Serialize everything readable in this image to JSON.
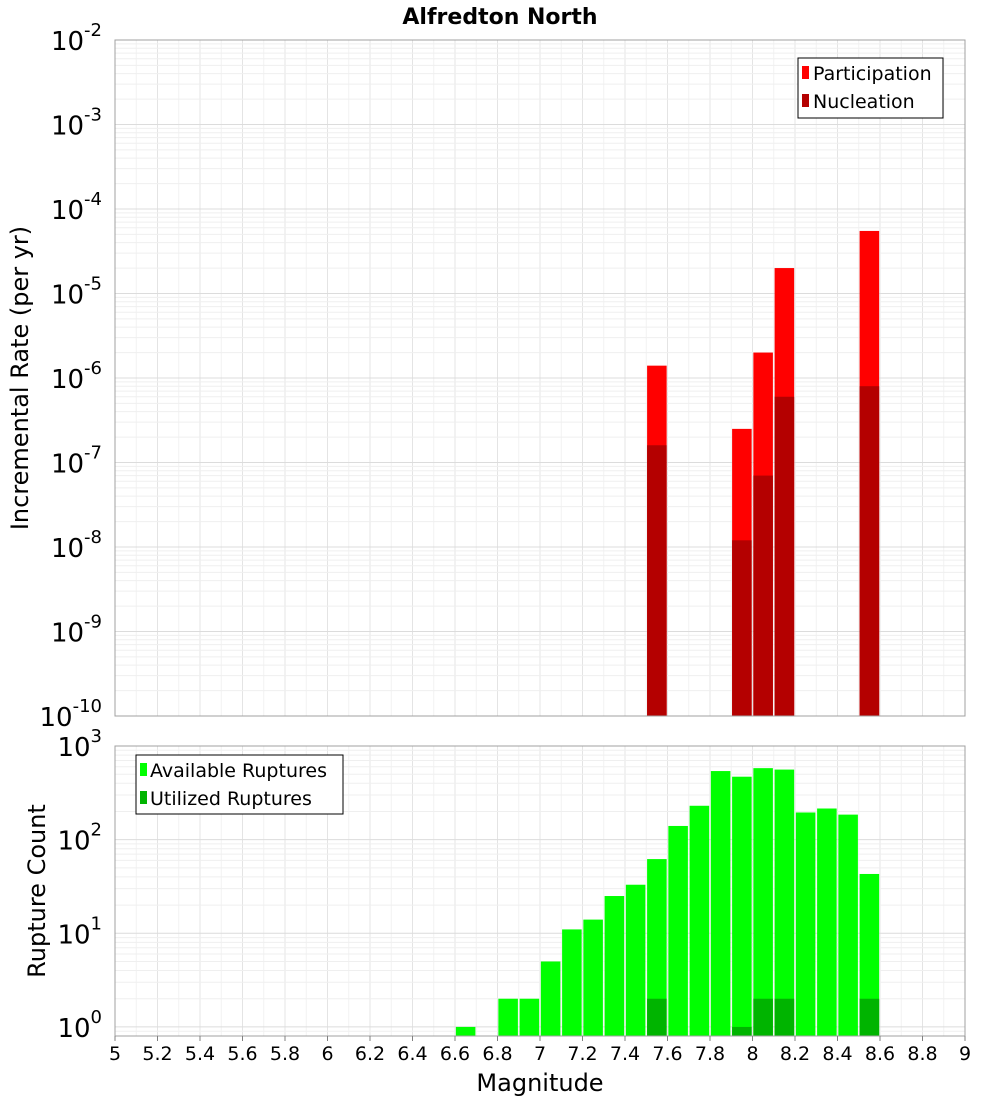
{
  "chart_data": [
    {
      "type": "bar",
      "title": "Alfredton North",
      "ylabel": "Incremental Rate (per yr)",
      "xlabel": "",
      "xlim": [
        5,
        9
      ],
      "ylim": [
        1e-10,
        0.01
      ],
      "yscale": "log",
      "y_tick_exponents": [
        "-2",
        "-3",
        "-4",
        "-5",
        "-6",
        "-7",
        "-8",
        "-9",
        "-10"
      ],
      "y_tick_base": "10",
      "grid": true,
      "legend_position": "top-right",
      "bar_width": 0.1,
      "series": [
        {
          "name": "Participation",
          "color": "#ff0000",
          "points": [
            {
              "x": 7.55,
              "y": 1.4e-06
            },
            {
              "x": 7.95,
              "y": 2.5e-07
            },
            {
              "x": 8.05,
              "y": 2e-06
            },
            {
              "x": 8.15,
              "y": 2e-05
            },
            {
              "x": 8.55,
              "y": 5.5e-05
            }
          ]
        },
        {
          "name": "Nucleation",
          "color": "#b40000",
          "points": [
            {
              "x": 7.55,
              "y": 1.6e-07
            },
            {
              "x": 7.95,
              "y": 1.2e-08
            },
            {
              "x": 8.05,
              "y": 7e-08
            },
            {
              "x": 8.15,
              "y": 6e-07
            },
            {
              "x": 8.55,
              "y": 8e-07
            }
          ]
        }
      ]
    },
    {
      "type": "bar",
      "title": "",
      "ylabel": "Rupture Count",
      "xlabel": "Magnitude",
      "xlim": [
        5,
        9
      ],
      "ylim": [
        0.8,
        1000
      ],
      "yscale": "log",
      "y_tick_exponents": [
        "3",
        "2",
        "1",
        "0"
      ],
      "y_tick_base": "10",
      "x_ticks": [
        "5",
        "5.2",
        "5.4",
        "5.6",
        "5.8",
        "6",
        "6.2",
        "6.4",
        "6.6",
        "6.8",
        "7",
        "7.2",
        "7.4",
        "7.6",
        "7.8",
        "8",
        "8.2",
        "8.4",
        "8.6",
        "8.8",
        "9"
      ],
      "grid": true,
      "legend_position": "top-left",
      "bar_width": 0.1,
      "series": [
        {
          "name": "Available Ruptures",
          "color": "#00ff00",
          "points": [
            {
              "x": 6.65,
              "y": 1
            },
            {
              "x": 6.85,
              "y": 2
            },
            {
              "x": 6.95,
              "y": 2
            },
            {
              "x": 7.05,
              "y": 5
            },
            {
              "x": 7.15,
              "y": 11
            },
            {
              "x": 7.25,
              "y": 14
            },
            {
              "x": 7.35,
              "y": 25
            },
            {
              "x": 7.45,
              "y": 33
            },
            {
              "x": 7.55,
              "y": 62
            },
            {
              "x": 7.65,
              "y": 140
            },
            {
              "x": 7.75,
              "y": 230
            },
            {
              "x": 7.85,
              "y": 540
            },
            {
              "x": 7.95,
              "y": 470
            },
            {
              "x": 8.05,
              "y": 580
            },
            {
              "x": 8.15,
              "y": 560
            },
            {
              "x": 8.25,
              "y": 195
            },
            {
              "x": 8.35,
              "y": 215
            },
            {
              "x": 8.45,
              "y": 185
            },
            {
              "x": 8.55,
              "y": 43
            }
          ]
        },
        {
          "name": "Utilized Ruptures",
          "color": "#00b400",
          "points": [
            {
              "x": 7.55,
              "y": 2
            },
            {
              "x": 7.95,
              "y": 1
            },
            {
              "x": 8.05,
              "y": 2
            },
            {
              "x": 8.15,
              "y": 2
            },
            {
              "x": 8.55,
              "y": 2
            }
          ]
        }
      ]
    }
  ]
}
